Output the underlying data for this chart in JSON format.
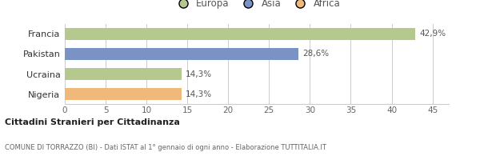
{
  "categories": [
    "Francia",
    "Pakistan",
    "Ucraina",
    "Nigeria"
  ],
  "values": [
    42.9,
    28.6,
    14.3,
    14.3
  ],
  "labels": [
    "42,9%",
    "28,6%",
    "14,3%",
    "14,3%"
  ],
  "bar_colors": [
    "#b5c98e",
    "#7b93c4",
    "#b5c98e",
    "#f0b87a"
  ],
  "legend_items": [
    {
      "label": "Europa",
      "color": "#b5c98e"
    },
    {
      "label": "Asia",
      "color": "#7b93c4"
    },
    {
      "label": "Africa",
      "color": "#f0b87a"
    }
  ],
  "xlim": [
    0,
    47
  ],
  "xticks": [
    0,
    5,
    10,
    15,
    20,
    25,
    30,
    35,
    40,
    45
  ],
  "title_bold": "Cittadini Stranieri per Cittadinanza",
  "subtitle": "COMUNE DI TORRAZZO (BI) - Dati ISTAT al 1° gennaio di ogni anno - Elaborazione TUTTITALIA.IT",
  "bg_color": "#ffffff",
  "grid_color": "#cccccc",
  "bar_height": 0.6,
  "label_fontsize": 7.5,
  "tick_fontsize": 7.5,
  "ytick_fontsize": 8,
  "legend_fontsize": 8.5
}
